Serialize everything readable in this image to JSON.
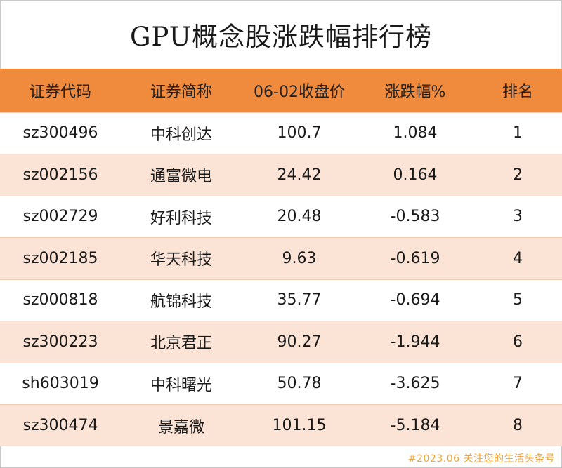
{
  "title": "GPU概念股涨跌幅排行榜",
  "table": {
    "headers": [
      "证券代码",
      "证券简称",
      "06-02收盘价",
      "涨跌幅%",
      "排名"
    ],
    "rows": [
      [
        "sz300496",
        "中科创达",
        "100.7",
        "1.084",
        "1"
      ],
      [
        "sz002156",
        "通富微电",
        "24.42",
        "0.164",
        "2"
      ],
      [
        "sz002729",
        "好利科技",
        "20.48",
        "-0.583",
        "3"
      ],
      [
        "sz002185",
        "华天科技",
        "9.63",
        "-0.619",
        "4"
      ],
      [
        "sz000818",
        "航锦科技",
        "35.77",
        "-0.694",
        "5"
      ],
      [
        "sz300223",
        "北京君正",
        "90.27",
        "-1.944",
        "6"
      ],
      [
        "sh603019",
        "中科曙光",
        "50.78",
        "-3.625",
        "7"
      ],
      [
        "sz300474",
        "景嘉微",
        "101.15",
        "-5.184",
        "8"
      ]
    ]
  },
  "footer": "#2023.06 关注您的生活头条号",
  "colors": {
    "header_bg": "#f08a3d",
    "stripe_bg": "#fbe4d6",
    "footer_text": "#f0a53a"
  }
}
